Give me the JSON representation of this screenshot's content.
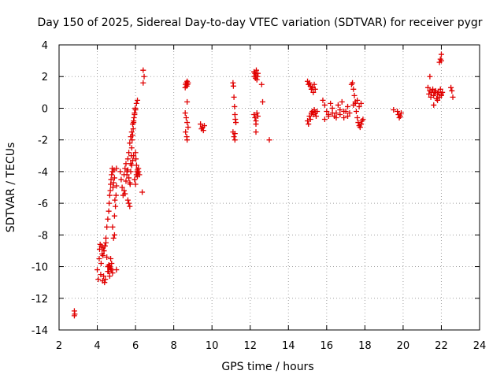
{
  "chart_data": {
    "type": "scatter",
    "title": "Day 150 of 2025, Sidereal Day-to-day VTEC variation (SDTVAR) for receiver pygr",
    "xlabel": "GPS time / hours",
    "ylabel": "SDTVAR / TECUs",
    "xlim": [
      2,
      24
    ],
    "ylim": [
      -14,
      4
    ],
    "xticks": [
      "2",
      "4",
      "6",
      "8",
      "10",
      "12",
      "14",
      "16",
      "18",
      "20",
      "22",
      "24"
    ],
    "yticks": [
      "4",
      "2",
      "0",
      "-2",
      "-4",
      "-6",
      "-8",
      "-10",
      "-12",
      "-14"
    ],
    "grid": true,
    "marker": "plus",
    "color": "#e00000",
    "series": [
      {
        "name": "SDTVAR",
        "x": [
          2.8,
          2.8,
          2.82,
          4.0,
          4.05,
          4.1,
          4.12,
          4.15,
          4.18,
          4.2,
          4.22,
          4.25,
          4.28,
          4.3,
          4.33,
          4.35,
          4.38,
          4.4,
          4.42,
          4.45,
          4.5,
          4.55,
          4.6,
          4.65,
          4.7,
          4.75,
          4.8,
          4.85,
          4.9,
          4.3,
          4.35,
          4.4,
          4.45,
          4.5,
          4.55,
          4.6,
          4.62,
          4.65,
          4.68,
          4.7,
          4.72,
          4.75,
          4.78,
          4.8,
          4.82,
          4.85,
          4.88,
          4.9,
          4.92,
          4.95,
          4.98,
          5.0,
          4.55,
          4.6,
          4.65,
          4.7,
          4.75,
          4.8,
          4.9,
          5.0,
          5.0,
          5.2,
          5.25,
          5.3,
          5.35,
          5.4,
          5.45,
          5.5,
          5.55,
          5.6,
          5.65,
          5.7,
          5.75,
          5.8,
          5.85,
          5.9,
          5.95,
          6.0,
          6.05,
          6.1,
          5.6,
          5.65,
          5.7,
          5.72,
          5.75,
          5.78,
          5.8,
          5.82,
          5.85,
          5.88,
          5.9,
          5.92,
          5.95,
          5.98,
          6.0,
          6.02,
          6.05,
          6.08,
          6.1,
          6.12,
          6.15,
          5.4,
          5.45,
          5.5,
          5.55,
          5.6,
          5.65,
          5.7,
          5.75,
          5.8,
          5.85,
          5.9,
          5.95,
          6.0,
          6.05,
          6.1,
          6.15,
          6.2,
          6.35,
          6.4,
          6.4,
          6.45,
          8.6,
          8.62,
          8.65,
          8.68,
          8.7,
          8.72,
          8.75,
          8.6,
          8.65,
          8.7,
          8.75,
          8.62,
          8.68,
          8.7,
          8.7,
          9.4,
          9.45,
          9.5,
          9.55,
          9.6,
          11.1,
          11.12,
          11.15,
          11.18,
          11.2,
          11.22,
          11.25,
          11.1,
          11.15,
          11.2,
          11.2,
          12.2,
          12.22,
          12.25,
          12.28,
          12.3,
          12.32,
          12.35,
          12.38,
          12.4,
          12.2,
          12.25,
          12.3,
          12.35,
          12.4,
          12.3,
          12.3,
          12.6,
          12.65,
          13.0,
          15.0,
          15.05,
          15.1,
          15.15,
          15.2,
          15.25,
          15.3,
          15.35,
          15.4,
          15.0,
          15.05,
          15.1,
          15.15,
          15.2,
          15.25,
          15.3,
          15.35,
          15.4,
          15.45,
          15.5,
          15.8,
          15.9,
          16.0,
          16.1,
          16.2,
          16.3,
          16.4,
          16.5,
          16.6,
          16.7,
          16.8,
          16.9,
          17.0,
          17.1,
          17.2,
          15.9,
          16.1,
          16.3,
          16.5,
          16.7,
          16.9,
          17.1,
          17.3,
          17.35,
          17.4,
          17.45,
          17.5,
          17.55,
          17.6,
          17.65,
          17.7,
          17.75,
          17.8,
          17.85,
          17.9,
          17.4,
          17.5,
          17.6,
          17.7,
          17.8,
          19.5,
          19.7,
          19.75,
          19.8,
          19.85,
          19.9,
          21.3,
          21.35,
          21.4,
          21.45,
          21.5,
          21.55,
          21.6,
          21.65,
          21.7,
          21.75,
          21.8,
          21.85,
          21.9,
          21.95,
          22.0,
          22.05,
          21.4,
          21.6,
          21.8,
          22.0,
          21.9,
          21.95,
          22.0,
          22.0,
          22.5,
          22.55,
          22.6
        ],
        "y": [
          -12.8,
          -13.1,
          -13.0,
          -10.2,
          -10.8,
          -9.5,
          -8.9,
          -8.6,
          -10.5,
          -9.8,
          -8.7,
          -9.2,
          -10.9,
          -8.8,
          -10.6,
          -9.0,
          -11.0,
          -8.7,
          -10.8,
          -8.5,
          -9.4,
          -10.3,
          -9.9,
          -10.0,
          -9.5,
          -10.2,
          -10.4,
          -8.2,
          -8.0,
          -9.3,
          -9.0,
          -8.7,
          -8.2,
          -7.5,
          -7.0,
          -6.5,
          -6.0,
          -5.5,
          -5.2,
          -4.8,
          -4.5,
          -4.2,
          -3.8,
          -4.0,
          -5.0,
          -4.7,
          -3.9,
          -4.4,
          -5.8,
          -6.2,
          -5.5,
          -4.9,
          -10.0,
          -10.3,
          -10.6,
          -10.1,
          -9.8,
          -7.5,
          -6.8,
          -10.2,
          -3.8,
          -4.0,
          -4.5,
          -5.0,
          -5.5,
          -4.2,
          -3.8,
          -3.5,
          -4.0,
          -3.2,
          -2.8,
          -2.2,
          -1.8,
          -1.5,
          -1.0,
          -0.8,
          -0.4,
          -0.1,
          0.3,
          0.5,
          -5.8,
          -6.0,
          -6.2,
          -4.8,
          -3.5,
          -3.0,
          -2.5,
          -2.0,
          -1.7,
          -1.3,
          -0.9,
          -0.6,
          -0.3,
          0.0,
          -2.8,
          -3.2,
          -3.6,
          -4.0,
          -4.3,
          -4.1,
          -3.8,
          -5.2,
          -5.4,
          -4.6,
          -4.2,
          -3.9,
          -4.4,
          -4.7,
          -4.0,
          -3.6,
          -3.3,
          -3.0,
          -4.5,
          -4.8,
          -4.2,
          -3.9,
          -4.0,
          -4.2,
          -5.3,
          2.4,
          1.6,
          2.0,
          1.3,
          1.5,
          1.6,
          1.4,
          1.7,
          1.5,
          1.6,
          -0.3,
          -0.6,
          -0.9,
          -1.2,
          -1.5,
          -1.8,
          -2.0,
          0.4,
          -1.0,
          -1.3,
          -1.2,
          -1.4,
          -1.1,
          1.6,
          1.4,
          0.7,
          0.1,
          -0.4,
          -0.7,
          -0.9,
          -1.5,
          -1.8,
          -2.0,
          -1.6,
          2.3,
          2.0,
          2.2,
          1.9,
          2.1,
          2.4,
          1.8,
          2.0,
          2.2,
          -0.4,
          -0.6,
          -0.8,
          -0.3,
          -0.5,
          -1.0,
          -1.5,
          1.5,
          0.4,
          -2.0,
          1.7,
          1.5,
          1.6,
          1.4,
          1.2,
          1.3,
          1.0,
          1.5,
          1.2,
          -0.8,
          -1.0,
          -0.5,
          -0.7,
          -0.3,
          -0.2,
          -0.4,
          -0.1,
          -0.3,
          -0.5,
          -0.2,
          0.5,
          0.2,
          -0.2,
          -0.4,
          0.3,
          0.0,
          -0.5,
          -0.3,
          0.2,
          -0.1,
          0.4,
          -0.6,
          -0.2,
          0.1,
          -0.3,
          -0.7,
          -0.5,
          -0.3,
          -0.6,
          -0.4,
          -0.2,
          -0.5,
          1.5,
          1.6,
          1.2,
          0.8,
          0.3,
          -0.2,
          -0.6,
          -0.9,
          -1.1,
          -1.2,
          -1.0,
          -0.8,
          -0.7,
          0.2,
          0.4,
          0.5,
          0.1,
          0.3,
          -0.1,
          -0.2,
          -0.4,
          -0.6,
          -0.5,
          -0.3,
          1.3,
          0.9,
          1.1,
          0.7,
          1.0,
          1.2,
          0.8,
          1.0,
          1.1,
          0.6,
          0.9,
          1.0,
          0.7,
          1.2,
          0.9,
          1.0,
          2.0,
          0.2,
          0.5,
          0.8,
          2.9,
          3.1,
          3.4,
          3.0,
          1.3,
          1.1,
          0.7
        ]
      }
    ]
  }
}
